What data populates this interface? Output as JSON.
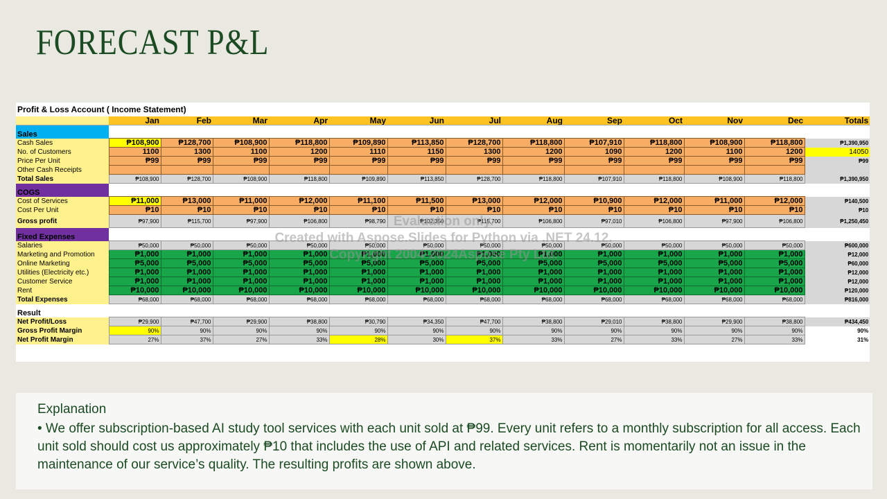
{
  "title": "FORECAST P&L",
  "sheet_title": "Profit & Loss Account ( Income Statement)",
  "months": [
    "Jan",
    "Feb",
    "Mar",
    "Apr",
    "May",
    "Jun",
    "Jul",
    "Aug",
    "Sep",
    "Oct",
    "Nov",
    "Dec"
  ],
  "totals_header": "Totals",
  "rows": [
    {
      "type": "section",
      "label": "Sales",
      "color": "blue"
    },
    {
      "label": "Cash Sales",
      "style": "orange",
      "big": true,
      "values": [
        "₱108,900",
        "₱128,700",
        "₱108,900",
        "₱118,800",
        "₱109,890",
        "₱113,850",
        "₱128,700",
        "₱118,800",
        "₱107,910",
        "₱118,800",
        "₱108,900",
        "₱118,800"
      ],
      "total": "₱1,390,950",
      "highlight": [
        0
      ]
    },
    {
      "label": "No. of Customers",
      "style": "orange",
      "big": true,
      "values": [
        "1100",
        "1300",
        "1100",
        "1200",
        "1110",
        "1150",
        "1300",
        "1200",
        "1090",
        "1200",
        "1100",
        "1200"
      ],
      "total": "14050",
      "total_highlight": true
    },
    {
      "label": "Price Per Unit",
      "style": "orange",
      "big": true,
      "values": [
        "₱99",
        "₱99",
        "₱99",
        "₱99",
        "₱99",
        "₱99",
        "₱99",
        "₱99",
        "₱99",
        "₱99",
        "₱99",
        "₱99"
      ],
      "total": "₱99"
    },
    {
      "label": "Other Cash Receipts",
      "style": "orange",
      "big": true,
      "values": [
        "",
        "",
        "",
        "",
        "",
        "",
        "",
        "",
        "",
        "",
        "",
        ""
      ],
      "total": ""
    },
    {
      "label": "Total Sales",
      "style": "gray",
      "bold_label": true,
      "values": [
        "₱108,900",
        "₱128,700",
        "₱108,900",
        "₱118,800",
        "₱109,890",
        "₱113,850",
        "₱128,700",
        "₱118,800",
        "₱107,910",
        "₱118,800",
        "₱108,900",
        "₱118,800"
      ],
      "total": "₱1,390,950"
    },
    {
      "type": "section",
      "label": "COGS",
      "color": "purple"
    },
    {
      "label": "Cost of Services",
      "style": "orange",
      "big": true,
      "values": [
        "₱11,000",
        "₱13,000",
        "₱11,000",
        "₱12,000",
        "₱11,100",
        "₱11,500",
        "₱13,000",
        "₱12,000",
        "₱10,900",
        "₱12,000",
        "₱11,000",
        "₱12,000"
      ],
      "total": "₱140,500",
      "highlight": [
        0
      ]
    },
    {
      "label": "Cost Per Unit",
      "style": "orange",
      "big": true,
      "values": [
        "₱10",
        "₱10",
        "₱10",
        "₱10",
        "₱10",
        "₱10",
        "₱10",
        "₱10",
        "₱10",
        "₱10",
        "₱10",
        "₱10"
      ],
      "total": "₱10"
    },
    {
      "label": "Gross profit",
      "style": "gray",
      "bold_label": true,
      "tall": true,
      "values": [
        "₱97,900",
        "₱115,700",
        "₱97,900",
        "₱106,800",
        "₱98,790",
        "₱102,350",
        "₱115,700",
        "₱106,800",
        "₱97,010",
        "₱106,800",
        "₱97,900",
        "₱106,800"
      ],
      "total": "₱1,250,450"
    },
    {
      "type": "section",
      "label": "Fixed Expenses",
      "color": "purple"
    },
    {
      "label": "Salaries",
      "style": "gray",
      "values": [
        "₱50,000",
        "₱50,000",
        "₱50,000",
        "₱50,000",
        "₱50,000",
        "₱50,000",
        "₱50,000",
        "₱50,000",
        "₱50,000",
        "₱50,000",
        "₱50,000",
        "₱50,000"
      ],
      "total": "₱600,000"
    },
    {
      "label": "Marketing and Promotion",
      "style": "green",
      "big": true,
      "values": [
        "₱1,000",
        "₱1,000",
        "₱1,000",
        "₱1,000",
        "₱1,000",
        "₱1,000",
        "₱1,000",
        "₱1,000",
        "₱1,000",
        "₱1,000",
        "₱1,000",
        "₱1,000"
      ],
      "total": "₱12,000"
    },
    {
      "label": "Online Marketing",
      "style": "green",
      "big": true,
      "values": [
        "₱5,000",
        "₱5,000",
        "₱5,000",
        "₱5,000",
        "₱5,000",
        "₱5,000",
        "₱5,000",
        "₱5,000",
        "₱5,000",
        "₱5,000",
        "₱5,000",
        "₱5,000"
      ],
      "total": "₱60,000"
    },
    {
      "label": "Utilities (Electricity etc.)",
      "style": "green",
      "big": true,
      "values": [
        "₱1,000",
        "₱1,000",
        "₱1,000",
        "₱1,000",
        "₱1,000",
        "₱1,000",
        "₱1,000",
        "₱1,000",
        "₱1,000",
        "₱1,000",
        "₱1,000",
        "₱1,000"
      ],
      "total": "₱12,000"
    },
    {
      "label": "Customer Service",
      "style": "green",
      "big": true,
      "values": [
        "₱1,000",
        "₱1,000",
        "₱1,000",
        "₱1,000",
        "₱1,000",
        "₱1,000",
        "₱1,000",
        "₱1,000",
        "₱1,000",
        "₱1,000",
        "₱1,000",
        "₱1,000"
      ],
      "total": "₱12,000"
    },
    {
      "label": "Rent",
      "style": "green",
      "big": true,
      "values": [
        "₱10,000",
        "₱10,000",
        "₱10,000",
        "₱10,000",
        "₱10,000",
        "₱10,000",
        "₱10,000",
        "₱10,000",
        "₱10,000",
        "₱10,000",
        "₱10,000",
        "₱10,000"
      ],
      "total": "₱120,000"
    },
    {
      "label": "Total Expenses",
      "style": "gray",
      "bold_label": true,
      "values": [
        "₱68,000",
        "₱68,000",
        "₱68,000",
        "₱68,000",
        "₱68,000",
        "₱68,000",
        "₱68,000",
        "₱68,000",
        "₱68,000",
        "₱68,000",
        "₱68,000",
        "₱68,000"
      ],
      "total": "₱816,000"
    },
    {
      "type": "section",
      "label": "Result",
      "color": "white"
    },
    {
      "label": "Net Profit/Loss",
      "style": "gray",
      "bold_label": true,
      "values": [
        "₱29,900",
        "₱47,700",
        "₱29,900",
        "₱38,800",
        "₱30,790",
        "₱34,350",
        "₱47,700",
        "₱38,800",
        "₱29,010",
        "₱38,800",
        "₱29,900",
        "₱38,800"
      ],
      "total": "₱434,450"
    },
    {
      "label": "Gross Profit Margin",
      "style": "gray",
      "bold_label": true,
      "values": [
        "90%",
        "90%",
        "90%",
        "90%",
        "90%",
        "90%",
        "90%",
        "90%",
        "90%",
        "90%",
        "90%",
        "90%"
      ],
      "total": "90%",
      "highlight": [
        0
      ]
    },
    {
      "label": "Net Profit Margin",
      "style": "gray",
      "bold_label": true,
      "values": [
        "27%",
        "37%",
        "27%",
        "33%",
        "28%",
        "30%",
        "37%",
        "33%",
        "27%",
        "33%",
        "27%",
        "33%"
      ],
      "total": "31%",
      "highlight": [
        4,
        6
      ]
    }
  ],
  "watermark": [
    "Evaluation only.",
    "Created with Aspose.Slides for Python via .NET 24.12.",
    "Copyright 2004-2024Aspose Pty Ltd."
  ],
  "explanation": {
    "title": "Explanation",
    "body": "• We offer subscription-based AI study tool services with each unit sold at ₱99. Every unit refers to a monthly subscription for all access. Each unit sold should cost us approximately ₱10 that includes the use of API and related services. Rent is momentarily not an issue in the maintenance of our service’s quality. The resulting profits are shown above."
  },
  "colors": {
    "title": "#1b4a23",
    "header": "#fcc322",
    "label": "#fff28c",
    "orange": "#f8ad65",
    "green": "#19a54a",
    "gray": "#d7d7d7",
    "blue": "#00b0f0",
    "purple": "#7030a0",
    "highlight": "#ffff00"
  }
}
